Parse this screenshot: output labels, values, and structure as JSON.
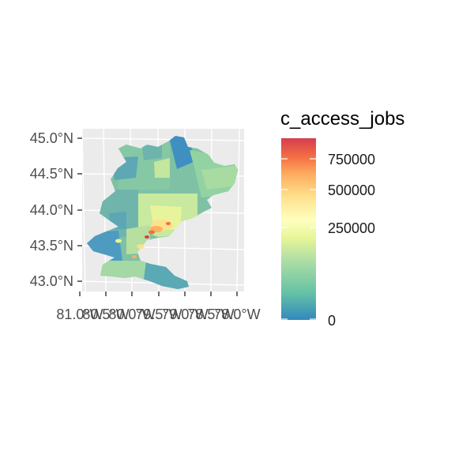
{
  "map": {
    "y_ticks": [
      "45.0°N",
      "44.5°N",
      "44.0°N",
      "43.5°N",
      "43.0°N"
    ],
    "x_ticks": [
      "81.0°W",
      "80.5°W",
      "80.0°W",
      "79.5°W",
      "79.0°W",
      "78.5°W",
      "78.0°W"
    ],
    "panel_background": "#ebebeb",
    "grid_color": "#ffffff"
  },
  "legend": {
    "title": "c_access_jobs",
    "breaks": [
      "750000",
      "500000",
      "250000",
      "0"
    ],
    "palette": "Spectral",
    "colors": [
      "#d53e4f",
      "#f46d43",
      "#fdae61",
      "#fee08b",
      "#ffffbf",
      "#e6f598",
      "#abdda4",
      "#66c2a5",
      "#3288bd"
    ]
  }
}
